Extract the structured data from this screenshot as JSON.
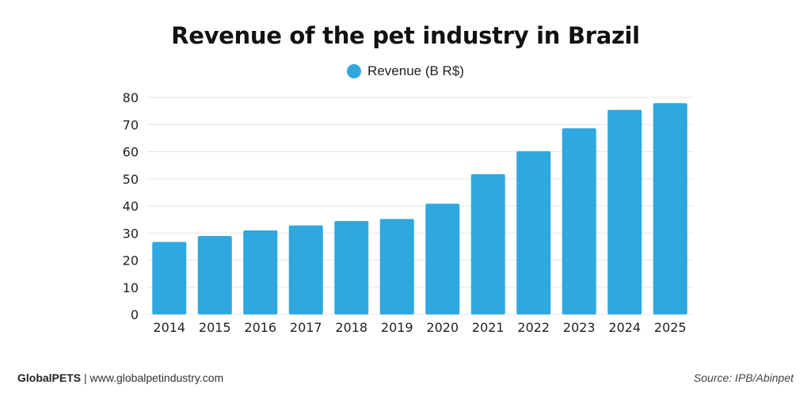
{
  "footer": {
    "brand": "GlobalPETS",
    "separator": " | ",
    "site": "www.globalpetindustry.com",
    "source": "Source: IPB/Abinpet"
  },
  "colors": {
    "bar": "#2ea8de",
    "grid": "#e6e6e6"
  },
  "chart_data": {
    "type": "bar",
    "title": "Revenue of the pet industry in Brazil",
    "xlabel": "",
    "ylabel": "",
    "legend": [
      "Revenue (B R$)"
    ],
    "legend_position": "top-center",
    "grid": true,
    "ylim": [
      0,
      80
    ],
    "yticks": [
      0,
      10,
      20,
      30,
      40,
      50,
      60,
      70,
      80
    ],
    "categories": [
      "2014",
      "2015",
      "2016",
      "2017",
      "2018",
      "2019",
      "2020",
      "2021",
      "2022",
      "2023",
      "2024",
      "2025"
    ],
    "series": [
      {
        "name": "Revenue (B R$)",
        "values": [
          26.7,
          28.9,
          31.0,
          32.8,
          34.4,
          35.2,
          40.8,
          51.7,
          60.2,
          68.6,
          75.4,
          77.9
        ]
      }
    ]
  }
}
